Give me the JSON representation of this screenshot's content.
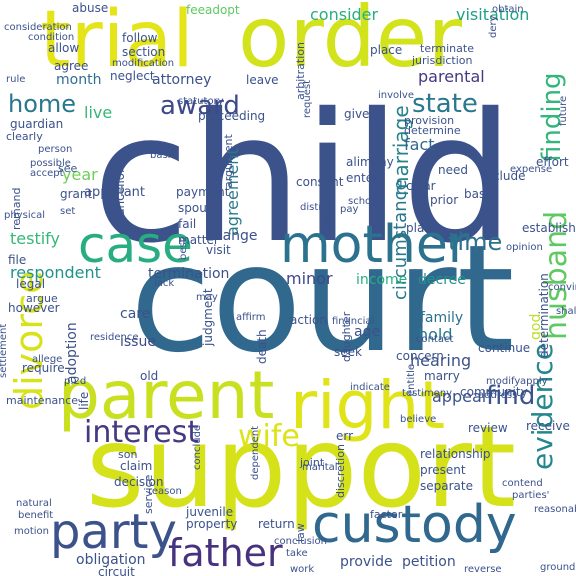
{
  "palette": {
    "background": "#ffffff",
    "dark_purple": "#440154",
    "navy": "#3b528b",
    "teal": "#21918c",
    "green": "#5ec962",
    "yellow_green": "#bddf26",
    "yellow": "#fde725"
  },
  "words": [
    {
      "text": "child",
      "color": "#3b528b"
    },
    {
      "text": "court",
      "color": "#31688e"
    },
    {
      "text": "support",
      "color": "#d5e21a"
    },
    {
      "text": "trial",
      "color": "#e5e419"
    },
    {
      "text": "order",
      "color": "#d2e21b"
    },
    {
      "text": "parent",
      "color": "#c8e020"
    },
    {
      "text": "right",
      "color": "#e0e318"
    },
    {
      "text": "custody",
      "color": "#31688e"
    },
    {
      "text": "mother",
      "color": "#2c728e"
    },
    {
      "text": "case",
      "color": "#27ad81"
    },
    {
      "text": "party",
      "color": "#3b528b"
    },
    {
      "text": "father",
      "color": "#46327e"
    },
    {
      "text": "divorce",
      "color": "#d8e219"
    },
    {
      "text": "husband",
      "color": "#5ec962"
    },
    {
      "text": "interest",
      "color": "#443983"
    },
    {
      "text": "wife",
      "color": "#dde318"
    },
    {
      "text": "evidence",
      "color": "#24878e"
    },
    {
      "text": "finding",
      "color": "#32b67a"
    },
    {
      "text": "state",
      "color": "#2a788e"
    },
    {
      "text": "award",
      "color": "#3e4989"
    },
    {
      "text": "home",
      "color": "#2a788e"
    },
    {
      "text": "find",
      "color": "#3b528b"
    },
    {
      "text": "time",
      "color": "#2c728e"
    },
    {
      "text": "marriage",
      "color": "#26828e"
    },
    {
      "text": "circumstance",
      "color": "#2a788e"
    },
    {
      "text": "agreement",
      "color": "#2a788e"
    },
    {
      "text": "consider",
      "color": "#28ae80"
    },
    {
      "text": "visitation",
      "color": "#1fa088"
    },
    {
      "text": "parental",
      "color": "#443983"
    },
    {
      "text": "fact",
      "color": "#31688e"
    },
    {
      "text": "year",
      "color": "#6ece58"
    },
    {
      "text": "month",
      "color": "#2e6e8e"
    },
    {
      "text": "live",
      "color": "#35b779"
    },
    {
      "text": "testify",
      "color": "#35b779"
    },
    {
      "text": "respondent",
      "color": "#21918c"
    },
    {
      "text": "termination",
      "color": "#3b528b"
    },
    {
      "text": "income",
      "color": "#29af7f"
    },
    {
      "text": "decree",
      "color": "#21918c"
    },
    {
      "text": "minor",
      "color": "#3e4989"
    },
    {
      "text": "change",
      "color": "#3b528b"
    },
    {
      "text": "adoption",
      "color": "#3b528b"
    },
    {
      "text": "appeal",
      "color": "#3b528b"
    },
    {
      "text": "hearing",
      "color": "#3b528b"
    },
    {
      "text": "family",
      "color": "#2c728e"
    },
    {
      "text": "hold",
      "color": "#2a788e"
    },
    {
      "text": "issue",
      "color": "#3e4989"
    },
    {
      "text": "care",
      "color": "#3b528b"
    },
    {
      "text": "god",
      "color": "#bddf26"
    },
    {
      "text": "attorney",
      "color": "#3b528b"
    },
    {
      "text": "abuse",
      "color": "#3b528b"
    },
    {
      "text": "follow",
      "color": "#3b528b"
    },
    {
      "text": "allow",
      "color": "#3b528b"
    },
    {
      "text": "section",
      "color": "#3b528b"
    },
    {
      "text": "neglect",
      "color": "#3b528b"
    },
    {
      "text": "agree",
      "color": "#3b528b"
    },
    {
      "text": "feeadopt",
      "color": "#5ec962"
    },
    {
      "text": "place",
      "color": "#3b528b"
    },
    {
      "text": "leave",
      "color": "#3b528b"
    },
    {
      "text": "terminate",
      "color": "#3b528b"
    },
    {
      "text": "jurisdiction",
      "color": "#3b528b"
    },
    {
      "text": "arbitration",
      "color": "#3b528b"
    },
    {
      "text": "give",
      "color": "#3b528b"
    },
    {
      "text": "provision",
      "color": "#3b528b"
    },
    {
      "text": "determine",
      "color": "#3b528b"
    },
    {
      "text": "include",
      "color": "#3b528b"
    },
    {
      "text": "base",
      "color": "#3b528b"
    },
    {
      "text": "effort",
      "color": "#3b528b"
    },
    {
      "text": "need",
      "color": "#3b528b"
    },
    {
      "text": "clear",
      "color": "#3b528b"
    },
    {
      "text": "alimony",
      "color": "#3b528b"
    },
    {
      "text": "enter",
      "color": "#3b528b"
    },
    {
      "text": "prior",
      "color": "#3b528b"
    },
    {
      "text": "plan",
      "color": "#3b528b"
    },
    {
      "text": "establish",
      "color": "#3b528b"
    },
    {
      "text": "payment",
      "color": "#3b528b"
    },
    {
      "text": "spouse",
      "color": "#3b528b"
    },
    {
      "text": "fail",
      "color": "#3b528b"
    },
    {
      "text": "matter",
      "color": "#3b528b"
    },
    {
      "text": "visit",
      "color": "#3b528b"
    },
    {
      "text": "grant",
      "color": "#3b528b"
    },
    {
      "text": "appellant",
      "color": "#3b528b"
    },
    {
      "text": "see",
      "color": "#3b528b"
    },
    {
      "text": "file",
      "color": "#3b528b"
    },
    {
      "text": "legal",
      "color": "#3b528b"
    },
    {
      "text": "argue",
      "color": "#3b528b"
    },
    {
      "text": "however",
      "color": "#3b528b"
    },
    {
      "text": "guardian",
      "color": "#3b528b"
    },
    {
      "text": "clearly",
      "color": "#3b528b"
    },
    {
      "text": "remand",
      "color": "#3b528b"
    },
    {
      "text": "proceeding",
      "color": "#3b528b"
    },
    {
      "text": "statute",
      "color": "#3b528b"
    },
    {
      "text": "consent",
      "color": "#3b528b"
    },
    {
      "text": "argument",
      "color": "#3b528b"
    },
    {
      "text": "chancellor",
      "color": "#3b528b"
    },
    {
      "text": "death",
      "color": "#3b528b"
    },
    {
      "text": "judgment",
      "color": "#3b528b"
    },
    {
      "text": "old",
      "color": "#3b528b"
    },
    {
      "text": "action",
      "color": "#3b528b"
    },
    {
      "text": "age",
      "color": "#3b528b"
    },
    {
      "text": "seek",
      "color": "#3b528b"
    },
    {
      "text": "concern",
      "color": "#3b528b"
    },
    {
      "text": "daughter",
      "color": "#3b528b"
    },
    {
      "text": "determination",
      "color": "#3b528b"
    },
    {
      "text": "marry",
      "color": "#3b528b"
    },
    {
      "text": "community",
      "color": "#3b528b"
    },
    {
      "text": "review",
      "color": "#3b528b"
    },
    {
      "text": "receive",
      "color": "#3b528b"
    },
    {
      "text": "err",
      "color": "#3b528b"
    },
    {
      "text": "relationship",
      "color": "#3b528b"
    },
    {
      "text": "present",
      "color": "#3b528b"
    },
    {
      "text": "separate",
      "color": "#3b528b"
    },
    {
      "text": "require",
      "color": "#3b528b"
    },
    {
      "text": "life",
      "color": "#3b528b"
    },
    {
      "text": "maintenance",
      "color": "#3b528b"
    },
    {
      "text": "son",
      "color": "#3b528b"
    },
    {
      "text": "claim",
      "color": "#3b528b"
    },
    {
      "text": "decision",
      "color": "#3b528b"
    },
    {
      "text": "service",
      "color": "#3b528b"
    },
    {
      "text": "juvenile",
      "color": "#3b528b"
    },
    {
      "text": "property",
      "color": "#3b528b"
    },
    {
      "text": "return",
      "color": "#3b528b"
    },
    {
      "text": "law",
      "color": "#3b528b"
    },
    {
      "text": "discretion",
      "color": "#3b528b"
    },
    {
      "text": "factor",
      "color": "#3b528b"
    },
    {
      "text": "obligation",
      "color": "#3b528b"
    },
    {
      "text": "provide",
      "color": "#3b528b"
    },
    {
      "text": "petition",
      "color": "#3b528b"
    },
    {
      "text": "circuit",
      "color": "#3b528b"
    },
    {
      "text": "continue",
      "color": "#3b528b"
    },
    {
      "text": "joint",
      "color": "#3b528b"
    },
    {
      "text": "marital",
      "color": "#3b528b"
    },
    {
      "text": "modify",
      "color": "#3b528b"
    },
    {
      "text": "financial",
      "color": "#3b528b"
    },
    {
      "text": "contact",
      "color": "#3b528b"
    },
    {
      "text": "basis",
      "color": "#3b528b"
    },
    {
      "text": "school",
      "color": "#3b528b"
    },
    {
      "text": "physical",
      "color": "#3b528b"
    },
    {
      "text": "request",
      "color": "#3b528b"
    },
    {
      "text": "statutory",
      "color": "#3b528b"
    },
    {
      "text": "consideration",
      "color": "#3b528b"
    },
    {
      "text": "obtain",
      "color": "#3b528b"
    },
    {
      "text": "future",
      "color": "#3b528b"
    },
    {
      "text": "expense",
      "color": "#3b528b"
    },
    {
      "text": "opinion",
      "color": "#3b528b"
    },
    {
      "text": "testimony",
      "color": "#3b528b"
    },
    {
      "text": "residence",
      "color": "#3b528b"
    },
    {
      "text": "address",
      "color": "#3b528b"
    },
    {
      "text": "believe",
      "color": "#3b528b"
    },
    {
      "text": "entitle",
      "color": "#3b528b"
    },
    {
      "text": "dependent",
      "color": "#3b528b"
    },
    {
      "text": "natural",
      "color": "#3b528b"
    },
    {
      "text": "benefit",
      "color": "#3b528b"
    },
    {
      "text": "motion",
      "color": "#3b528b"
    },
    {
      "text": "contend",
      "color": "#3b528b"
    },
    {
      "text": "parties'",
      "color": "#3b528b"
    },
    {
      "text": "conclude",
      "color": "#3b528b"
    },
    {
      "text": "reason",
      "color": "#3b528b"
    },
    {
      "text": "work",
      "color": "#3b528b"
    },
    {
      "text": "take",
      "color": "#3b528b"
    },
    {
      "text": "reverse",
      "color": "#3b528b"
    },
    {
      "text": "ground",
      "color": "#3b528b"
    },
    {
      "text": "conclusion",
      "color": "#3b528b"
    },
    {
      "text": "modification",
      "color": "#3b528b"
    },
    {
      "text": "indicate",
      "color": "#3b528b"
    },
    {
      "text": "p.2d",
      "color": "#3b528b"
    },
    {
      "text": "settlement",
      "color": "#3b528b"
    },
    {
      "text": "rule",
      "color": "#3b528b"
    },
    {
      "text": "convincing",
      "color": "#3b528b"
    },
    {
      "text": "involve",
      "color": "#3b528b"
    },
    {
      "text": "dery",
      "color": "#3b528b"
    },
    {
      "text": "may",
      "color": "#3b528b"
    },
    {
      "text": "lack",
      "color": "#3b528b"
    },
    {
      "text": "best",
      "color": "#3b528b"
    },
    {
      "text": "shall",
      "color": "#3b528b"
    },
    {
      "text": "affirm",
      "color": "#3b528b"
    },
    {
      "text": "district",
      "color": "#3b528b"
    },
    {
      "text": "pay",
      "color": "#3b528b"
    },
    {
      "text": "allege",
      "color": "#3b528b"
    },
    {
      "text": "condition",
      "color": "#3b528b"
    },
    {
      "text": "person",
      "color": "#3b528b"
    },
    {
      "text": "possible",
      "color": "#3b528b"
    },
    {
      "text": "accept",
      "color": "#3b528b"
    },
    {
      "text": "set",
      "color": "#3b528b"
    },
    {
      "text": "reasonable",
      "color": "#3b528b"
    },
    {
      "text": "apply",
      "color": "#3b528b"
    },
    {
      "text": "first",
      "color": "#3b528b"
    },
    {
      "text": "right",
      "color": "#3b528b"
    },
    {
      "text": "determine",
      "color": "#3b528b"
    }
  ]
}
